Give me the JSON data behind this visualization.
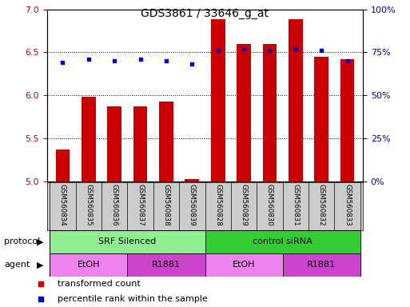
{
  "title": "GDS3861 / 33646_g_at",
  "samples": [
    "GSM560834",
    "GSM560835",
    "GSM560836",
    "GSM560837",
    "GSM560838",
    "GSM560839",
    "GSM560828",
    "GSM560829",
    "GSM560830",
    "GSM560831",
    "GSM560832",
    "GSM560833"
  ],
  "transformed_count": [
    5.37,
    5.98,
    5.87,
    5.87,
    5.93,
    5.02,
    6.88,
    6.6,
    6.6,
    6.88,
    6.45,
    6.42
  ],
  "percentile_rank": [
    69,
    71,
    70,
    71,
    70,
    68,
    76,
    77,
    76,
    77,
    76,
    70
  ],
  "ylim_left": [
    5,
    7
  ],
  "ylim_right": [
    0,
    100
  ],
  "yticks_left": [
    5,
    5.5,
    6,
    6.5,
    7
  ],
  "yticks_right": [
    0,
    25,
    50,
    75,
    100
  ],
  "bar_color": "#cc0000",
  "dot_color": "#0000cc",
  "bar_width": 0.55,
  "protocol_groups": [
    {
      "label": "SRF Silenced",
      "start": 0,
      "end": 6,
      "color": "#90ee90"
    },
    {
      "label": "control siRNA",
      "start": 6,
      "end": 12,
      "color": "#33cc33"
    }
  ],
  "agent_groups": [
    {
      "label": "EtOH",
      "start": 0,
      "end": 3,
      "color": "#ee82ee"
    },
    {
      "label": "R1881",
      "start": 3,
      "end": 6,
      "color": "#cc44cc"
    },
    {
      "label": "EtOH",
      "start": 6,
      "end": 9,
      "color": "#ee82ee"
    },
    {
      "label": "R1881",
      "start": 9,
      "end": 12,
      "color": "#cc44cc"
    }
  ],
  "legend_items": [
    {
      "label": "transformed count",
      "color": "#cc0000"
    },
    {
      "label": "percentile rank within the sample",
      "color": "#0000cc"
    }
  ],
  "bg_color": "#ffffff",
  "grid_color": "#000000",
  "tick_label_color_left": "#cc0000",
  "tick_label_color_right": "#0000cc",
  "label_bg_color": "#cccccc"
}
